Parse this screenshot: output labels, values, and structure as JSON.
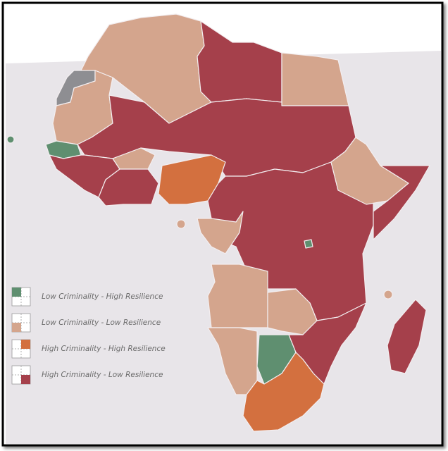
{
  "legend": [
    {
      "label": "Low Criminality - High Resilience",
      "color": "#5f8f70"
    },
    {
      "label": "Low Criminality - Low Resilience",
      "color": "#d4a58d"
    },
    {
      "label": "High Criminality - High Resilience",
      "color": "#d3703f"
    },
    {
      "label": "High Criminality - Low Resilience",
      "color": "#a5404b"
    }
  ]
}
